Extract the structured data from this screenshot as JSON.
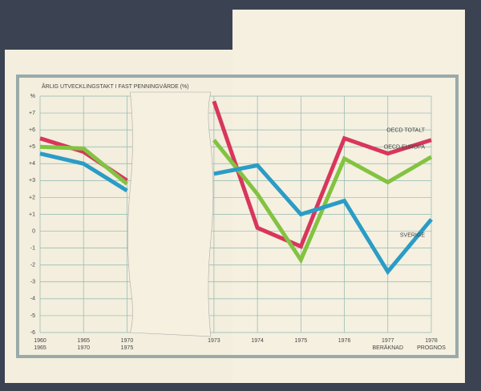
{
  "chart_data": {
    "type": "line",
    "title": "ÅRLIG UTVECKLINGSTAKT I FAST PENNINGVÄRDE (%)",
    "categories": [
      [
        "1960",
        "1965"
      ],
      [
        "1965",
        "1970"
      ],
      [
        "1970",
        "1975"
      ],
      [
        "1973"
      ],
      [
        "1974"
      ],
      [
        "1975"
      ],
      [
        "1976"
      ],
      [
        "1977",
        "BERÄKNAD"
      ],
      [
        "1978",
        "PROGNOS"
      ]
    ],
    "break_after": 2,
    "series": [
      {
        "name": "OECD TOTALT",
        "color": "#d8365c",
        "values": [
          5.5,
          4.7,
          3.0,
          7.7,
          0.2,
          -0.9,
          5.5,
          4.6,
          5.4
        ]
      },
      {
        "name": "OECD EUROPA",
        "color": "#82c341",
        "values": [
          5.0,
          4.9,
          2.8,
          5.4,
          2.2,
          -1.7,
          4.3,
          2.9,
          4.4
        ]
      },
      {
        "name": "SVERIGE",
        "color": "#2a9cc6",
        "values": [
          4.6,
          4.0,
          2.4,
          3.4,
          3.9,
          1.0,
          1.8,
          -2.4,
          0.7
        ]
      }
    ],
    "ylim": [
      -6,
      8
    ],
    "yticks": [
      {
        "value": 8,
        "label": "%"
      },
      {
        "value": 7,
        "label": "+7"
      },
      {
        "value": 6,
        "label": "+6"
      },
      {
        "value": 5,
        "label": "+5"
      },
      {
        "value": 4,
        "label": "+4"
      },
      {
        "value": 3,
        "label": "+3"
      },
      {
        "value": 2,
        "label": "+2"
      },
      {
        "value": 1,
        "label": "+1"
      },
      0,
      -1,
      -2,
      -3,
      -4,
      -5,
      -6
    ],
    "grid": true
  }
}
